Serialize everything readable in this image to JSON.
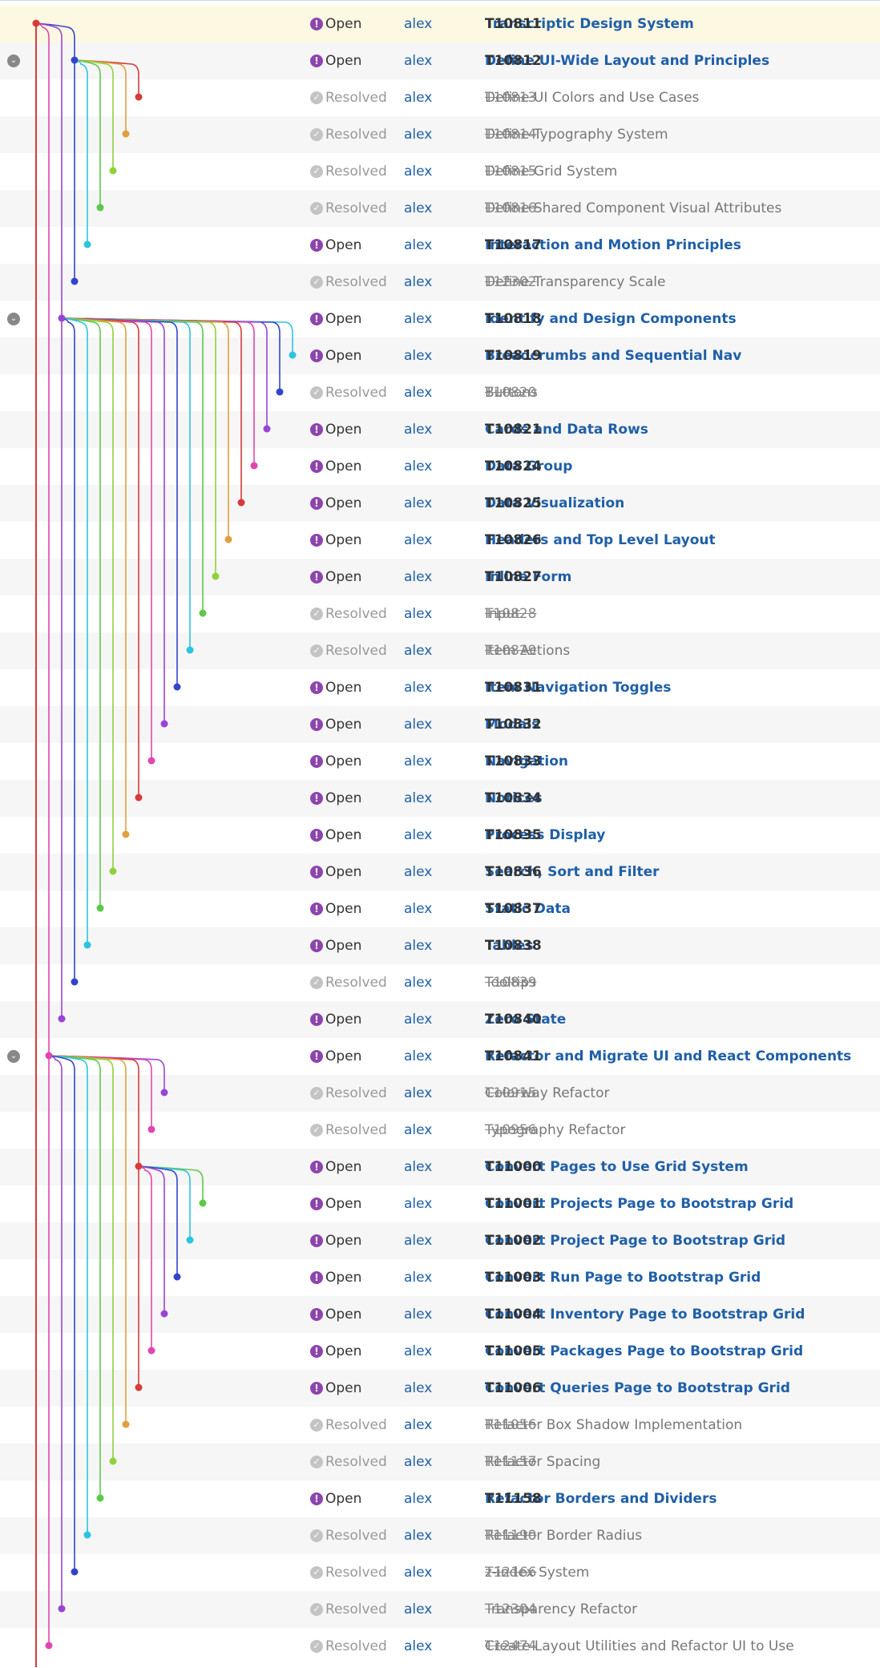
{
  "tasks": [
    {
      "status": "Open",
      "owner": "alex",
      "id": "T10811",
      "title": "Transcriptic Design System"
    },
    {
      "status": "Open",
      "owner": "alex",
      "id": "T10812",
      "title": "Define UI-Wide Layout and Principles"
    },
    {
      "status": "Resolved",
      "owner": "alex",
      "id": "T10813",
      "title": "Define UI Colors and Use Cases"
    },
    {
      "status": "Resolved",
      "owner": "alex",
      "id": "T10814",
      "title": "Define Typography System"
    },
    {
      "status": "Resolved",
      "owner": "alex",
      "id": "T10815",
      "title": "Define Grid System"
    },
    {
      "status": "Resolved",
      "owner": "alex",
      "id": "T10816",
      "title": "Define Shared Component Visual Attributes"
    },
    {
      "status": "Open",
      "owner": "alex",
      "id": "T10817",
      "title": "Interaction and Motion Principles"
    },
    {
      "status": "Resolved",
      "owner": "alex",
      "id": "T12302",
      "title": "Define Transparency Scale"
    },
    {
      "status": "Open",
      "owner": "alex",
      "id": "T10818",
      "title": "Identify and Design Components"
    },
    {
      "status": "Open",
      "owner": "alex",
      "id": "T10819",
      "title": "Breadcrumbs and Sequential Nav"
    },
    {
      "status": "Resolved",
      "owner": "alex",
      "id": "T10820",
      "title": "Buttons"
    },
    {
      "status": "Open",
      "owner": "alex",
      "id": "T10821",
      "title": "Cards and Data Rows"
    },
    {
      "status": "Open",
      "owner": "alex",
      "id": "T10824",
      "title": "Data Group"
    },
    {
      "status": "Open",
      "owner": "alex",
      "id": "T10825",
      "title": "Data Visualization"
    },
    {
      "status": "Open",
      "owner": "alex",
      "id": "T10826",
      "title": "Headers and Top Level Layout"
    },
    {
      "status": "Open",
      "owner": "alex",
      "id": "T10827",
      "title": "Inline Form"
    },
    {
      "status": "Resolved",
      "owner": "alex",
      "id": "T10828",
      "title": "Input"
    },
    {
      "status": "Resolved",
      "owner": "alex",
      "id": "T10829",
      "title": "Item Actions"
    },
    {
      "status": "Open",
      "owner": "alex",
      "id": "T10831",
      "title": "Item Navigation Toggles"
    },
    {
      "status": "Open",
      "owner": "alex",
      "id": "T10832",
      "title": "Modals"
    },
    {
      "status": "Open",
      "owner": "alex",
      "id": "T10833",
      "title": "Navigation"
    },
    {
      "status": "Open",
      "owner": "alex",
      "id": "T10834",
      "title": "Notices"
    },
    {
      "status": "Open",
      "owner": "alex",
      "id": "T10835",
      "title": "Process Display"
    },
    {
      "status": "Open",
      "owner": "alex",
      "id": "T10836",
      "title": "Search, Sort and Filter"
    },
    {
      "status": "Open",
      "owner": "alex",
      "id": "T10837",
      "title": "Static Data"
    },
    {
      "status": "Open",
      "owner": "alex",
      "id": "T10838",
      "title": "Tables"
    },
    {
      "status": "Resolved",
      "owner": "alex",
      "id": "T10839",
      "title": "Tooltips"
    },
    {
      "status": "Open",
      "owner": "alex",
      "id": "T10840",
      "title": "Zero State"
    },
    {
      "status": "Open",
      "owner": "alex",
      "id": "T10841",
      "title": "Refactor and Migrate UI and React Components"
    },
    {
      "status": "Resolved",
      "owner": "alex",
      "id": "T10915",
      "title": "Colorway Refactor"
    },
    {
      "status": "Resolved",
      "owner": "alex",
      "id": "T10956",
      "title": "Typography Refactor"
    },
    {
      "status": "Open",
      "owner": "alex",
      "id": "T11000",
      "title": "Convert Pages to Use Grid System"
    },
    {
      "status": "Open",
      "owner": "alex",
      "id": "T11001",
      "title": "Convert Projects Page to Bootstrap Grid"
    },
    {
      "status": "Open",
      "owner": "alex",
      "id": "T11002",
      "title": "Convert Project Page to Bootstrap Grid"
    },
    {
      "status": "Open",
      "owner": "alex",
      "id": "T11003",
      "title": "Convert Run Page to Bootstrap Grid"
    },
    {
      "status": "Open",
      "owner": "alex",
      "id": "T11004",
      "title": "Convert Inventory Page to Bootstrap Grid"
    },
    {
      "status": "Open",
      "owner": "alex",
      "id": "T11005",
      "title": "Convert Packages Page to Bootstrap Grid"
    },
    {
      "status": "Open",
      "owner": "alex",
      "id": "T11006",
      "title": "Convert Queries Page to Bootstrap Grid"
    },
    {
      "status": "Resolved",
      "owner": "alex",
      "id": "T11056",
      "title": "Refactor Box Shadow Implementation"
    },
    {
      "status": "Resolved",
      "owner": "alex",
      "id": "T11157",
      "title": "Refactor Spacing"
    },
    {
      "status": "Open",
      "owner": "alex",
      "id": "T11158",
      "title": "Refactor Borders and Dividers"
    },
    {
      "status": "Resolved",
      "owner": "alex",
      "id": "T11190",
      "title": "Refactor Border Radius"
    },
    {
      "status": "Resolved",
      "owner": "alex",
      "id": "T12166",
      "title": "z-index System"
    },
    {
      "status": "Resolved",
      "owner": "alex",
      "id": "T12304",
      "title": "Transparency Refactor"
    },
    {
      "status": "Resolved",
      "owner": "alex",
      "id": "T12474",
      "title": "Create Layout Utilities and Refactor UI to Use"
    }
  ]
}
